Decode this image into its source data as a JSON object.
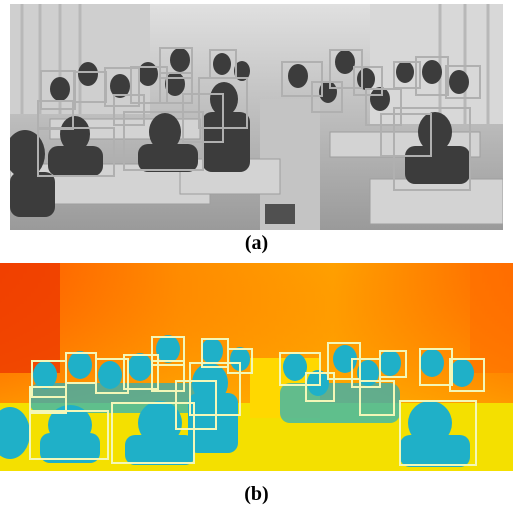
{
  "figure": {
    "panels": [
      {
        "caption": "(a)",
        "style": "grayscale photo",
        "box_color": "#b0b0b0"
      },
      {
        "caption": "(b)",
        "style": "thermal pseudo-color",
        "box_color": "#f3f7b8"
      }
    ]
  }
}
